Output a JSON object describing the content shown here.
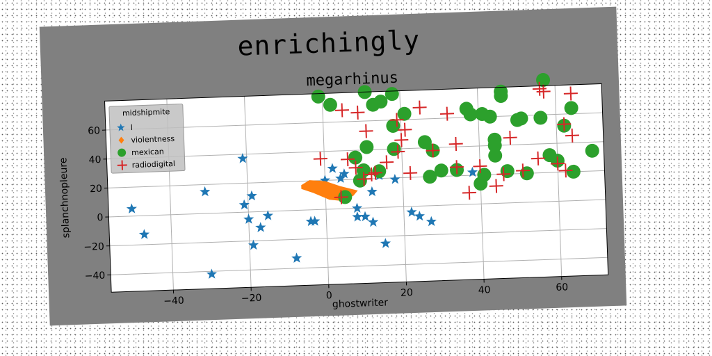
{
  "chart_data": {
    "type": "scatter",
    "suptitle": "enrichingly",
    "title": "megarhinus",
    "xlabel": "ghostwriter",
    "ylabel": "splanchnopleure",
    "xlim": [
      -56,
      72
    ],
    "ylim": [
      -52,
      80
    ],
    "xticks": [
      -40,
      -20,
      0,
      20,
      40,
      60
    ],
    "yticks": [
      -40,
      -20,
      0,
      20,
      40,
      60
    ],
    "grid": true,
    "legend": {
      "title": "midshipmite",
      "placement": "top-left"
    },
    "series": [
      {
        "name": "l",
        "marker": "star",
        "color": "#1f77b4",
        "points": [
          [
            -50,
            5
          ],
          [
            -47,
            -13
          ],
          [
            -31,
            15
          ],
          [
            -30,
            -42
          ],
          [
            -21,
            37
          ],
          [
            -21,
            5
          ],
          [
            -20,
            -5
          ],
          [
            -19,
            11
          ],
          [
            -19,
            -23
          ],
          [
            -17,
            -11
          ],
          [
            -15,
            -3
          ],
          [
            -8,
            -33
          ],
          [
            -4,
            -8
          ],
          [
            -3,
            -8
          ],
          [
            0,
            20
          ],
          [
            2,
            28
          ],
          [
            4,
            21
          ],
          [
            5,
            24
          ],
          [
            8,
            0
          ],
          [
            8,
            -6
          ],
          [
            10,
            -6
          ],
          [
            12,
            -10
          ],
          [
            12,
            11
          ],
          [
            14,
            22
          ],
          [
            15,
            -25
          ],
          [
            18,
            19
          ],
          [
            22,
            -4
          ],
          [
            24,
            -7
          ],
          [
            27,
            -11
          ],
          [
            38,
            22
          ]
        ]
      },
      {
        "name": "violentness",
        "marker": "polygon",
        "color": "#ff7f0e",
        "points": [
          [
            -6,
            17
          ],
          [
            -4,
            20
          ],
          [
            0,
            19
          ],
          [
            4,
            15
          ],
          [
            8,
            12
          ],
          [
            7,
            9
          ],
          [
            4,
            6
          ],
          [
            1,
            7
          ],
          [
            -3,
            12
          ],
          [
            -6,
            15
          ]
        ]
      },
      {
        "name": "mexican",
        "marker": "circle",
        "color": "#2ca02c",
        "points": [
          [
            -1,
            78
          ],
          [
            2,
            72
          ],
          [
            5,
            8
          ],
          [
            8,
            35
          ],
          [
            9,
            19
          ],
          [
            10,
            26
          ],
          [
            11,
            42
          ],
          [
            11,
            80
          ],
          [
            13,
            71
          ],
          [
            14,
            25
          ],
          [
            15,
            73
          ],
          [
            18,
            78
          ],
          [
            18,
            56
          ],
          [
            18,
            40
          ],
          [
            21,
            64
          ],
          [
            26,
            44
          ],
          [
            27,
            20
          ],
          [
            28,
            38
          ],
          [
            30,
            24
          ],
          [
            34,
            24
          ],
          [
            37,
            66
          ],
          [
            38,
            62
          ],
          [
            40,
            14
          ],
          [
            41,
            20
          ],
          [
            41,
            62
          ],
          [
            43,
            60
          ],
          [
            44,
            44
          ],
          [
            44,
            40
          ],
          [
            44,
            33
          ],
          [
            46,
            77
          ],
          [
            46,
            74
          ],
          [
            47,
            22
          ],
          [
            50,
            57
          ],
          [
            51,
            58
          ],
          [
            52,
            20
          ],
          [
            56,
            58
          ],
          [
            57,
            84
          ],
          [
            58,
            32
          ],
          [
            60,
            28
          ],
          [
            62,
            52
          ],
          [
            64,
            64
          ],
          [
            64,
            20
          ],
          [
            69,
            34
          ]
        ]
      },
      {
        "name": "radiodigital",
        "marker": "plus",
        "color": "#d62728",
        "points": [
          [
            -1,
            35
          ],
          [
            4,
            8
          ],
          [
            5,
            68
          ],
          [
            6,
            34
          ],
          [
            8,
            28
          ],
          [
            9,
            66
          ],
          [
            10,
            20
          ],
          [
            11,
            53
          ],
          [
            12,
            23
          ],
          [
            13,
            24
          ],
          [
            16,
            31
          ],
          [
            19,
            38
          ],
          [
            19,
            60
          ],
          [
            20,
            46
          ],
          [
            21,
            53
          ],
          [
            22,
            23
          ],
          [
            25,
            68
          ],
          [
            28,
            38
          ],
          [
            32,
            63
          ],
          [
            34,
            42
          ],
          [
            34,
            26
          ],
          [
            37,
            8
          ],
          [
            40,
            26
          ],
          [
            44,
            12
          ],
          [
            46,
            20
          ],
          [
            48,
            45
          ],
          [
            51,
            22
          ],
          [
            55,
            30
          ],
          [
            56,
            78
          ],
          [
            57,
            76
          ],
          [
            60,
            26
          ],
          [
            62,
            53
          ],
          [
            62,
            21
          ],
          [
            64,
            74
          ],
          [
            64,
            45
          ]
        ]
      }
    ]
  }
}
